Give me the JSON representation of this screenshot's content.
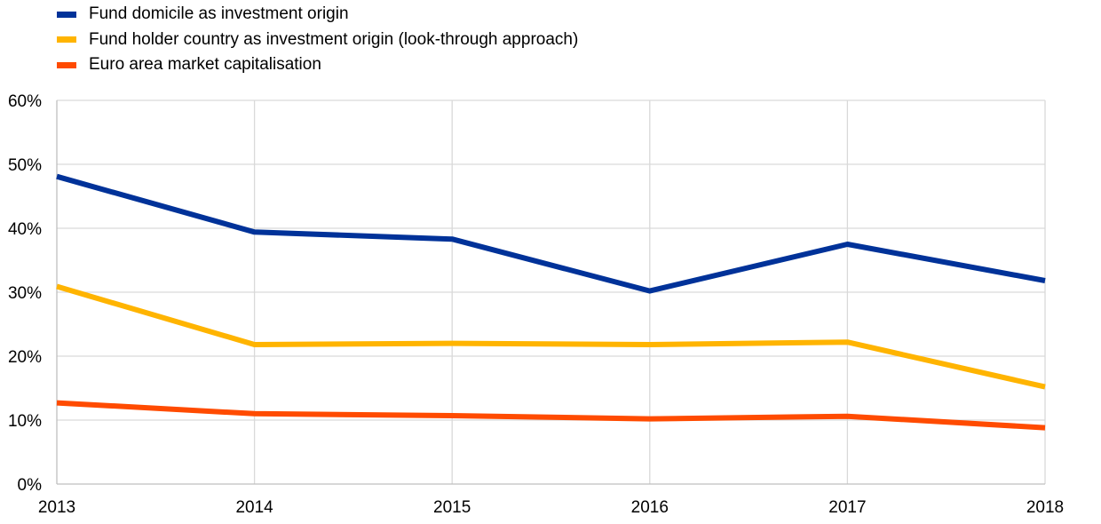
{
  "chart_data": {
    "type": "line",
    "categories": [
      "2013",
      "2014",
      "2015",
      "2016",
      "2017",
      "2018"
    ],
    "series": [
      {
        "name": "Fund domicile as investment origin",
        "color": "#003299",
        "values": [
          48.1,
          39.4,
          38.3,
          30.2,
          37.5,
          31.8
        ]
      },
      {
        "name": "Fund holder country as investment origin (look-through approach)",
        "color": "#FFB400",
        "values": [
          30.9,
          21.8,
          22.0,
          21.8,
          22.2,
          15.2
        ]
      },
      {
        "name": "Euro area market capitalisation",
        "color": "#FF4B00",
        "values": [
          12.7,
          11.0,
          10.7,
          10.2,
          10.6,
          8.8
        ]
      }
    ],
    "yticks": [
      "0%",
      "10%",
      "20%",
      "30%",
      "40%",
      "50%",
      "60%"
    ],
    "ylim": [
      0,
      60
    ],
    "grid": true,
    "legend_position": "top-left"
  }
}
